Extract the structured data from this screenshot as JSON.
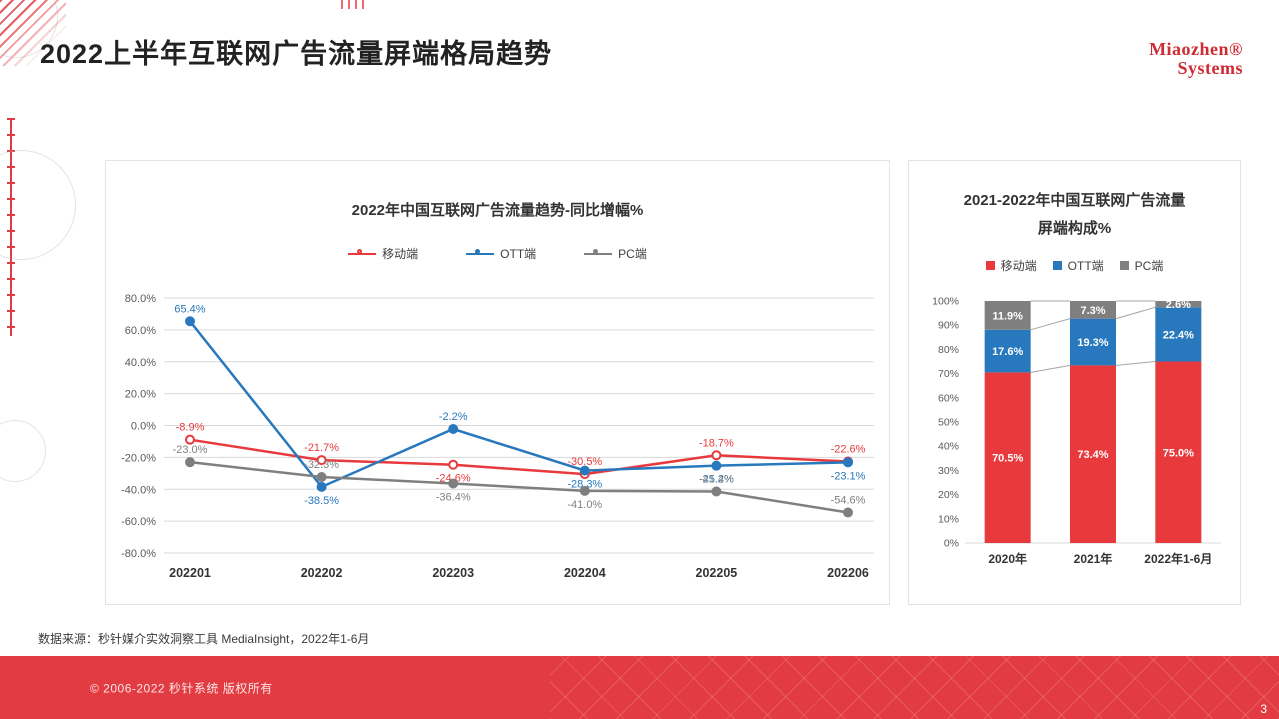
{
  "page": {
    "title": "2022上半年互联网广告流量屏端格局趋势",
    "logo_line1": "Miaozhen®",
    "logo_line2": "Systems",
    "source_note": "数据来源：秒针媒介实效洞察工具 MediaInsight，2022年1-6月",
    "footer_copyright": "© 2006-2022 秒针系统 版权所有",
    "page_number": "3"
  },
  "colors": {
    "brand_red": "#e23b41",
    "mobile_red": "#e8393d",
    "ott_blue": "#2878bd",
    "pc_gray": "#7f7f7f",
    "gridline": "#d9d9d9",
    "connector_gray": "#a6a6a6"
  },
  "chart_data": [
    {
      "type": "line",
      "title": "2022年中国互联网广告流量趋势-同比增幅%",
      "categories": [
        "202201",
        "202202",
        "202203",
        "202204",
        "202205",
        "202206"
      ],
      "series": [
        {
          "name": "移动端",
          "color": "#e8393d",
          "marker": "open",
          "values": [
            -8.9,
            -21.7,
            -24.6,
            -30.5,
            -18.7,
            -22.6
          ]
        },
        {
          "name": "OTT端",
          "color": "#2878bd",
          "marker": "filled",
          "values": [
            65.4,
            -38.5,
            -2.2,
            -28.3,
            -25.2,
            -23.1
          ]
        },
        {
          "name": "PC端",
          "color": "#7f7f7f",
          "marker": "filled",
          "values": [
            -23.0,
            -32.3,
            -36.4,
            -41.0,
            -41.4,
            -54.6
          ]
        }
      ],
      "label_pos": [
        [
          "above",
          "above",
          "below",
          "above",
          "above",
          "above"
        ],
        [
          "above",
          "below",
          "above",
          "below",
          "below",
          "below"
        ],
        [
          "above",
          "above",
          "below",
          "below",
          "above",
          "above"
        ]
      ],
      "ylim": [
        -80,
        80
      ],
      "yticks": [
        "80.0%",
        "60.0%",
        "40.0%",
        "20.0%",
        "0.0%",
        "-20.0%",
        "-40.0%",
        "-60.0%",
        "-80.0%"
      ],
      "grid": true,
      "legend_position": "top"
    },
    {
      "type": "stacked-bar",
      "title_line1": "2021-2022年中国互联网广告流量",
      "title_line2": "屏端构成%",
      "categories": [
        "2020年",
        "2021年",
        "2022年1-6月"
      ],
      "series": [
        {
          "name": "移动端",
          "color": "#e8393d",
          "values": [
            70.5,
            73.4,
            75.0
          ]
        },
        {
          "name": "OTT端",
          "color": "#2878bd",
          "values": [
            17.6,
            19.3,
            22.4
          ]
        },
        {
          "name": "PC端",
          "color": "#7f7f7f",
          "values": [
            11.9,
            7.3,
            2.6
          ]
        }
      ],
      "ylim": [
        0,
        100
      ],
      "yticks": [
        "0%",
        "10%",
        "20%",
        "30%",
        "40%",
        "50%",
        "60%",
        "70%",
        "80%",
        "90%",
        "100%"
      ],
      "grid": false,
      "legend_position": "top"
    }
  ]
}
